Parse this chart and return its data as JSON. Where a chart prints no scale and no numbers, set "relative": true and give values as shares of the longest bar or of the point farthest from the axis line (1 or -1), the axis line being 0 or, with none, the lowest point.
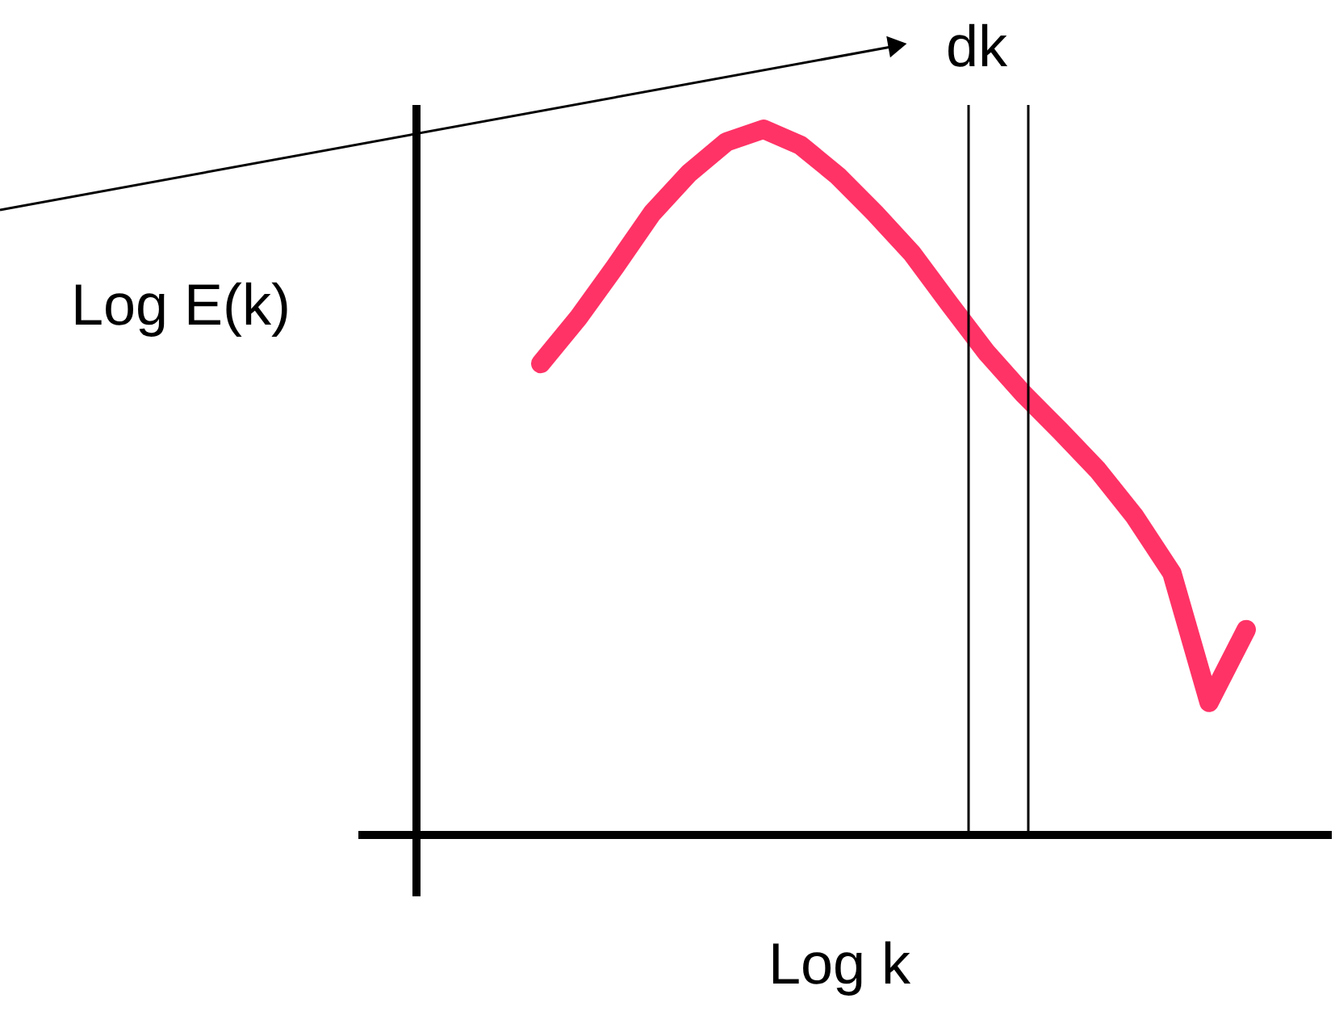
{
  "chart_data": {
    "type": "line",
    "relative": true,
    "xlabel": "Log k",
    "ylabel": "Log E(k)",
    "categories": [
      null,
      null,
      null,
      null,
      null,
      null,
      null,
      null,
      null,
      null,
      null,
      null,
      null,
      null,
      null,
      null,
      null,
      null,
      null,
      null
    ],
    "series": [
      {
        "color": "#ff3366",
        "values": [
          0.668,
          0.732,
          0.805,
          0.881,
          0.938,
          0.982,
          1.0,
          0.977,
          0.934,
          0.881,
          0.824,
          0.753,
          0.684,
          0.625,
          0.572,
          0.517,
          0.451,
          0.371,
          0.188,
          0.291
        ]
      }
    ],
    "annotations": [
      "dk"
    ],
    "marker": "none",
    "line_style": "solid"
  }
}
